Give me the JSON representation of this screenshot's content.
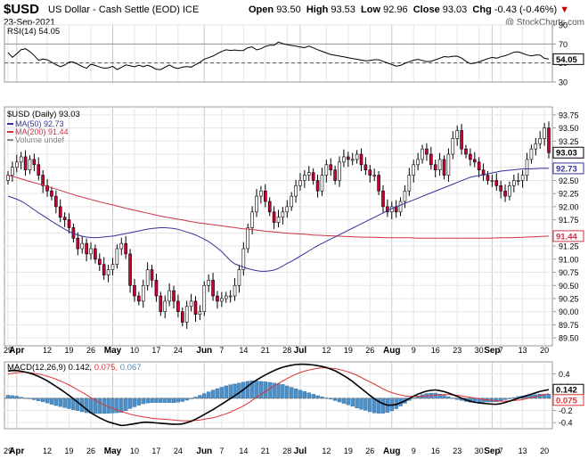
{
  "header": {
    "symbol": "$USD",
    "name": "US Dollar - Cash Settle (EOD)",
    "exchange": "ICE",
    "date": "23-Sep-2021",
    "open_label": "Open",
    "open": "93.50",
    "high_label": "High",
    "high": "93.53",
    "low_label": "Low",
    "low": "92.96",
    "close_label": "Close",
    "close": "93.03",
    "chg_label": "Chg",
    "chg": "-0.43 (-0.46%)",
    "copyright": "@ StockCharts.com"
  },
  "colors": {
    "up": "#ffffff",
    "down": "#cc0033",
    "ma50": "#333399",
    "ma200": "#cc3344",
    "macd": "#000000",
    "signal": "#dd3333",
    "hist": "#4d8fc7",
    "rsi": "#000000"
  },
  "chart_data": [
    {
      "type": "line",
      "title": "RSI(14) 54.05",
      "series": [
        {
          "name": "RSI(14)",
          "current": 54.05
        }
      ],
      "ylim": [
        30,
        90
      ],
      "y_ticks": [
        90,
        70,
        50,
        30
      ],
      "ref_lines": [
        70,
        30
      ],
      "values": [
        61,
        55,
        62,
        66,
        63,
        58,
        52,
        55,
        52,
        49,
        46,
        48,
        52,
        50,
        47,
        44,
        49,
        47,
        45,
        44,
        47,
        43,
        46,
        49,
        45,
        48,
        46,
        48,
        45,
        42,
        45,
        48,
        45,
        44,
        47,
        45,
        48,
        51,
        55,
        56,
        59,
        62,
        64,
        63,
        64,
        62,
        66,
        67,
        63,
        66,
        69,
        68,
        72,
        70,
        69,
        68,
        67,
        66,
        68,
        65,
        63,
        61,
        59,
        58,
        57,
        56,
        55,
        54,
        53,
        52,
        53,
        54,
        52,
        50,
        48,
        46,
        49,
        51,
        53,
        54,
        52,
        51,
        53,
        55,
        57,
        56,
        58,
        56,
        52,
        49,
        50,
        52,
        54,
        56,
        55,
        57,
        58,
        61,
        62,
        60,
        58,
        57,
        60,
        55,
        54.05
      ],
      "current_label": "54.05"
    },
    {
      "type": "candlestick",
      "title": "$USD (Daily) 93.03",
      "legend": [
        {
          "name": "MA(50) 92.73",
          "color": "#333399"
        },
        {
          "name": "MA(200) 91.44",
          "color": "#cc3344"
        },
        {
          "name": "Volume undef",
          "color": "#888888"
        }
      ],
      "ylim": [
        89.35,
        93.9
      ],
      "y_ticks": [
        "93.75",
        "93.50",
        "93.25",
        "93.00",
        "92.75",
        "92.50",
        "92.25",
        "92.00",
        "91.75",
        "91.50",
        "91.25",
        "91.00",
        "90.75",
        "90.50",
        "90.25",
        "90.00",
        "89.75",
        "89.50"
      ],
      "x_ticks": [
        {
          "label": "29",
          "bold": false,
          "i": 0
        },
        {
          "label": "Apr",
          "bold": true,
          "i": 2
        },
        {
          "label": "12",
          "bold": false,
          "i": 9
        },
        {
          "label": "19",
          "bold": false,
          "i": 14
        },
        {
          "label": "26",
          "bold": false,
          "i": 19
        },
        {
          "label": "May",
          "bold": true,
          "i": 24
        },
        {
          "label": "10",
          "bold": false,
          "i": 29
        },
        {
          "label": "17",
          "bold": false,
          "i": 34
        },
        {
          "label": "24",
          "bold": false,
          "i": 39
        },
        {
          "label": "Jun",
          "bold": true,
          "i": 45
        },
        {
          "label": "7",
          "bold": false,
          "i": 49
        },
        {
          "label": "14",
          "bold": false,
          "i": 54
        },
        {
          "label": "21",
          "bold": false,
          "i": 59
        },
        {
          "label": "28",
          "bold": false,
          "i": 64
        },
        {
          "label": "Jul",
          "bold": true,
          "i": 67
        },
        {
          "label": "12",
          "bold": false,
          "i": 73
        },
        {
          "label": "19",
          "bold": false,
          "i": 78
        },
        {
          "label": "26",
          "bold": false,
          "i": 83
        },
        {
          "label": "Aug",
          "bold": true,
          "i": 88
        },
        {
          "label": "9",
          "bold": false,
          "i": 93
        },
        {
          "label": "16",
          "bold": false,
          "i": 98
        },
        {
          "label": "23",
          "bold": false,
          "i": 103
        },
        {
          "label": "30",
          "bold": false,
          "i": 108
        },
        {
          "label": "Sep",
          "bold": true,
          "i": 111
        },
        {
          "label": "7",
          "bold": false,
          "i": 113
        },
        {
          "label": "13",
          "bold": false,
          "i": 118
        },
        {
          "label": "20",
          "bold": false,
          "i": 123
        }
      ],
      "last_price_label": "93.03",
      "ma50_label": "92.73",
      "ma200_label": "91.44",
      "close": [
        92.6,
        92.75,
        92.85,
        92.95,
        92.7,
        92.9,
        92.8,
        92.6,
        92.4,
        92.3,
        92.2,
        92.0,
        91.8,
        91.75,
        91.6,
        91.4,
        91.2,
        91.3,
        91.1,
        91.2,
        91.0,
        90.9,
        90.7,
        90.8,
        90.9,
        91.2,
        91.3,
        91.1,
        90.5,
        90.3,
        90.2,
        90.5,
        90.8,
        90.6,
        90.3,
        90.0,
        90.2,
        90.4,
        90.2,
        90.0,
        89.8,
        90.1,
        90.2,
        89.95,
        90.0,
        90.5,
        90.6,
        90.3,
        90.2,
        90.25,
        90.3,
        90.3,
        90.5,
        90.8,
        91.2,
        91.6,
        91.9,
        92.2,
        92.3,
        92.1,
        91.9,
        91.7,
        91.8,
        91.9,
        92.0,
        92.2,
        92.4,
        92.5,
        92.6,
        92.65,
        92.5,
        92.3,
        92.6,
        92.8,
        92.7,
        92.5,
        92.85,
        92.95,
        92.9,
        92.9,
        93.0,
        92.8,
        92.7,
        92.6,
        92.6,
        92.3,
        92.0,
        91.9,
        92.0,
        91.9,
        92.1,
        92.3,
        92.6,
        92.8,
        92.9,
        93.1,
        93.0,
        92.8,
        92.7,
        92.9,
        92.6,
        93.0,
        93.3,
        93.45,
        93.1,
        93.0,
        92.9,
        92.85,
        92.7,
        92.6,
        92.5,
        92.5,
        92.4,
        92.3,
        92.2,
        92.4,
        92.5,
        92.5,
        92.6,
        92.9,
        93.1,
        93.2,
        93.3,
        93.5,
        93.03
      ],
      "ma50": [
        92.2,
        92.17,
        92.13,
        92.08,
        92.01,
        91.94,
        91.87,
        91.81,
        91.74,
        91.68,
        91.62,
        91.56,
        91.51,
        91.47,
        91.44,
        91.42,
        91.41,
        91.41,
        91.42,
        91.43,
        91.44,
        91.46,
        91.48,
        91.5,
        91.52,
        91.54,
        91.56,
        91.58,
        91.59,
        91.6,
        91.6,
        91.59,
        91.58,
        91.55,
        91.52,
        91.49,
        91.45,
        91.4,
        91.35,
        91.28,
        91.2,
        91.12,
        91.0,
        90.92,
        90.88,
        90.84,
        90.81,
        90.79,
        90.77,
        90.77,
        90.78,
        90.8,
        90.85,
        90.91,
        90.96,
        91.02,
        91.08,
        91.14,
        91.2,
        91.26,
        91.31,
        91.36,
        91.41,
        91.46,
        91.51,
        91.56,
        91.61,
        91.66,
        91.71,
        91.76,
        91.81,
        91.86,
        91.91,
        91.96,
        92.0,
        92.04,
        92.08,
        92.12,
        92.16,
        92.2,
        92.24,
        92.28,
        92.32,
        92.36,
        92.4,
        92.44,
        92.48,
        92.52,
        92.56,
        92.58,
        92.6,
        92.62,
        92.64,
        92.66,
        92.68,
        92.69,
        92.7,
        92.71,
        92.72,
        92.72,
        92.72,
        92.73,
        92.73,
        92.73
      ],
      "ma200": [
        92.6,
        92.54,
        92.47,
        92.41,
        92.34,
        92.27,
        92.2,
        92.14,
        92.08,
        92.03,
        91.97,
        91.92,
        91.87,
        91.82,
        91.78,
        91.74,
        91.7,
        91.67,
        91.64,
        91.61,
        91.58,
        91.56,
        91.53,
        91.51,
        91.49,
        91.48,
        91.46,
        91.45,
        91.44,
        91.43,
        91.42,
        91.42,
        91.41,
        91.41,
        91.41,
        91.4,
        91.4,
        91.4,
        91.4,
        91.4,
        91.4,
        91.4,
        91.41,
        91.41,
        91.42,
        91.43,
        91.44
      ],
      "volume": "undef"
    },
    {
      "type": "line",
      "title": "MACD(12,26,9) 0.142, 0.075, 0.067",
      "series": [
        {
          "name": "MACD(12,26,9)",
          "current": 0.142
        },
        {
          "name": "signal",
          "current": 0.075
        },
        {
          "name": "histogram",
          "current": 0.067
        }
      ],
      "ylim": [
        -0.5,
        0.6
      ],
      "y_ticks": [
        "0.4",
        "0.2",
        "0.0",
        "-0.2",
        "-0.4"
      ],
      "macd_label": "0.142",
      "signal_label": "0.075",
      "macd": [
        0.45,
        0.46,
        0.44,
        0.41,
        0.36,
        0.3,
        0.22,
        0.14,
        0.05,
        -0.05,
        -0.15,
        -0.25,
        -0.32,
        -0.38,
        -0.42,
        -0.45,
        -0.43,
        -0.41,
        -0.39,
        -0.4,
        -0.41,
        -0.42,
        -0.43,
        -0.42,
        -0.38,
        -0.32,
        -0.25,
        -0.18,
        -0.1,
        -0.02,
        0.06,
        0.15,
        0.25,
        0.33,
        0.4,
        0.46,
        0.51,
        0.54,
        0.56,
        0.56,
        0.55,
        0.53,
        0.5,
        0.45,
        0.38,
        0.3,
        0.2,
        0.1,
        0.0,
        -0.08,
        -0.12,
        -0.1,
        -0.05,
        0.02,
        0.08,
        0.12,
        0.14,
        0.12,
        0.08,
        0.03,
        -0.02,
        -0.06,
        -0.08,
        -0.09,
        -0.1,
        -0.08,
        -0.04,
        0.0,
        0.04,
        0.08,
        0.12,
        0.142
      ],
      "signal": [
        0.4,
        0.42,
        0.43,
        0.42,
        0.4,
        0.37,
        0.33,
        0.28,
        0.22,
        0.15,
        0.08,
        0.0,
        -0.07,
        -0.13,
        -0.18,
        -0.22,
        -0.26,
        -0.29,
        -0.31,
        -0.33,
        -0.34,
        -0.35,
        -0.36,
        -0.37,
        -0.37,
        -0.36,
        -0.34,
        -0.32,
        -0.28,
        -0.24,
        -0.18,
        -0.12,
        -0.04,
        0.05,
        0.13,
        0.21,
        0.28,
        0.35,
        0.41,
        0.45,
        0.48,
        0.5,
        0.5,
        0.49,
        0.46,
        0.42,
        0.37,
        0.3,
        0.24,
        0.17,
        0.11,
        0.07,
        0.04,
        0.03,
        0.03,
        0.04,
        0.05,
        0.06,
        0.06,
        0.05,
        0.03,
        0.01,
        -0.01,
        -0.03,
        -0.04,
        -0.05,
        -0.04,
        -0.03,
        -0.01,
        0.02,
        0.05,
        0.075
      ]
    }
  ]
}
